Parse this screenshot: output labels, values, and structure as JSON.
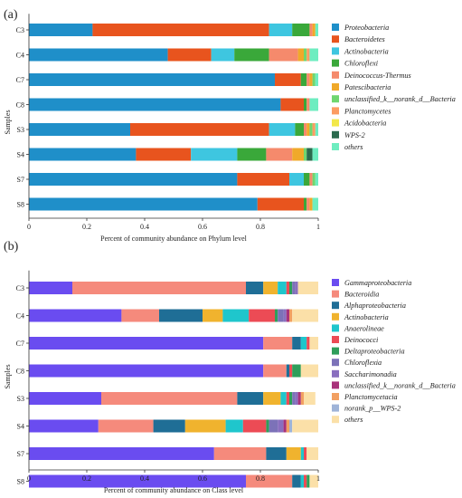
{
  "chart_data": [
    {
      "panel": "(a)",
      "type": "bar",
      "orientation": "horizontal",
      "stacked": true,
      "xlabel": "Percent of community abundance on Phylum level",
      "ylabel": "Samples",
      "xlim": [
        0,
        1
      ],
      "xticks": [
        "0",
        "0.2",
        "0.4",
        "0.6",
        "0.8",
        "1"
      ],
      "grid": false,
      "legend_position": "right",
      "categories": [
        "C3",
        "C4",
        "C7",
        "C8",
        "S3",
        "S4",
        "S7",
        "S8"
      ],
      "series": [
        {
          "name": "Proteobacteria",
          "color": "#1f8fc9",
          "values": [
            0.22,
            0.48,
            0.85,
            0.87,
            0.35,
            0.37,
            0.72,
            0.79
          ]
        },
        {
          "name": "Bacteroidetes",
          "color": "#e8541e",
          "values": [
            0.61,
            0.15,
            0.09,
            0.08,
            0.48,
            0.19,
            0.18,
            0.16
          ]
        },
        {
          "name": "Actinobacteria",
          "color": "#3ec6e0",
          "values": [
            0.08,
            0.08,
            0.0,
            0.0,
            0.09,
            0.16,
            0.05,
            0.0
          ]
        },
        {
          "name": "Chloroflexi",
          "color": "#3aa83a",
          "values": [
            0.06,
            0.12,
            0.02,
            0.01,
            0.03,
            0.1,
            0.02,
            0.01
          ]
        },
        {
          "name": "Deinococcus-Thermus",
          "color": "#f58a6c",
          "values": [
            0.01,
            0.1,
            0.01,
            0.01,
            0.01,
            0.09,
            0.01,
            0.01
          ]
        },
        {
          "name": "Patescibacteria",
          "color": "#f0a92a",
          "values": [
            0.01,
            0.02,
            0.01,
            0.0,
            0.01,
            0.04,
            0.0,
            0.01
          ]
        },
        {
          "name": "unclassified_k__norank_d__Bacteria",
          "color": "#6fd66f",
          "values": [
            0.0,
            0.01,
            0.01,
            0.0,
            0.01,
            0.01,
            0.01,
            0.0
          ]
        },
        {
          "name": "Planctomycetes",
          "color": "#fc9c62",
          "values": [
            0.0,
            0.01,
            0.0,
            0.0,
            0.01,
            0.0,
            0.0,
            0.0
          ]
        },
        {
          "name": "Acidobacteria",
          "color": "#f2e84a",
          "values": [
            0.0,
            0.0,
            0.0,
            0.0,
            0.0,
            0.0,
            0.0,
            0.0
          ]
        },
        {
          "name": "WPS-2",
          "color": "#2b6b4e",
          "values": [
            0.0,
            0.0,
            0.0,
            0.0,
            0.0,
            0.02,
            0.0,
            0.0
          ]
        },
        {
          "name": "others",
          "color": "#6eedc0",
          "values": [
            0.01,
            0.03,
            0.01,
            0.03,
            0.01,
            0.02,
            0.01,
            0.02
          ]
        }
      ]
    },
    {
      "panel": "(b)",
      "type": "bar",
      "orientation": "horizontal",
      "stacked": true,
      "xlabel": "Percent of community abundance on Class level",
      "ylabel": "Samples",
      "xlim": [
        0,
        1
      ],
      "xticks": [
        "0",
        "0.2",
        "0.4",
        "0.6",
        "0.8",
        "1"
      ],
      "grid": false,
      "legend_position": "right",
      "categories": [
        "C3",
        "C4",
        "C7",
        "C8",
        "S3",
        "S4",
        "S7",
        "S8"
      ],
      "series": [
        {
          "name": "Gammaproteobacteria",
          "color": "#6a4cf0",
          "values": [
            0.15,
            0.32,
            0.81,
            0.81,
            0.25,
            0.24,
            0.64,
            0.75
          ]
        },
        {
          "name": "Bacteroidia",
          "color": "#f58a7c",
          "values": [
            0.6,
            0.13,
            0.1,
            0.08,
            0.47,
            0.19,
            0.18,
            0.16
          ]
        },
        {
          "name": "Alphaproteobacteria",
          "color": "#1f6e96",
          "values": [
            0.06,
            0.15,
            0.03,
            0.01,
            0.09,
            0.11,
            0.07,
            0.03
          ]
        },
        {
          "name": "Actinobacteria",
          "color": "#f0b32e",
          "values": [
            0.05,
            0.07,
            0.0,
            0.0,
            0.06,
            0.14,
            0.05,
            0.0
          ]
        },
        {
          "name": "Anaerolineae",
          "color": "#1fc6cc",
          "values": [
            0.03,
            0.09,
            0.02,
            0.0,
            0.02,
            0.06,
            0.01,
            0.01
          ]
        },
        {
          "name": "Deinococci",
          "color": "#ec4b55",
          "values": [
            0.01,
            0.09,
            0.01,
            0.01,
            0.01,
            0.08,
            0.01,
            0.01
          ]
        },
        {
          "name": "Deltaproteobacteria",
          "color": "#2f9e5a",
          "values": [
            0.01,
            0.01,
            0.0,
            0.03,
            0.01,
            0.01,
            0.0,
            0.01
          ]
        },
        {
          "name": "Chloroflexia",
          "color": "#7c72b8",
          "values": [
            0.01,
            0.02,
            0.0,
            0.0,
            0.01,
            0.03,
            0.0,
            0.0
          ]
        },
        {
          "name": "Saccharimonadia",
          "color": "#8a6fbf",
          "values": [
            0.01,
            0.01,
            0.0,
            0.0,
            0.01,
            0.02,
            0.0,
            0.0
          ]
        },
        {
          "name": "unclassified_k__norank_d__Bacteria",
          "color": "#a8327a",
          "values": [
            0.0,
            0.01,
            0.0,
            0.0,
            0.01,
            0.01,
            0.0,
            0.0
          ]
        },
        {
          "name": "Planctomycetacia",
          "color": "#f2a062",
          "values": [
            0.0,
            0.01,
            0.0,
            0.0,
            0.01,
            0.01,
            0.0,
            0.0
          ]
        },
        {
          "name": "norank_p__WPS-2",
          "color": "#9fb4d8",
          "values": [
            0.0,
            0.0,
            0.0,
            0.0,
            0.0,
            0.01,
            0.0,
            0.0
          ]
        },
        {
          "name": "others",
          "color": "#fbe0a8",
          "values": [
            0.07,
            0.09,
            0.03,
            0.06,
            0.04,
            0.09,
            0.04,
            0.03
          ]
        }
      ]
    }
  ]
}
